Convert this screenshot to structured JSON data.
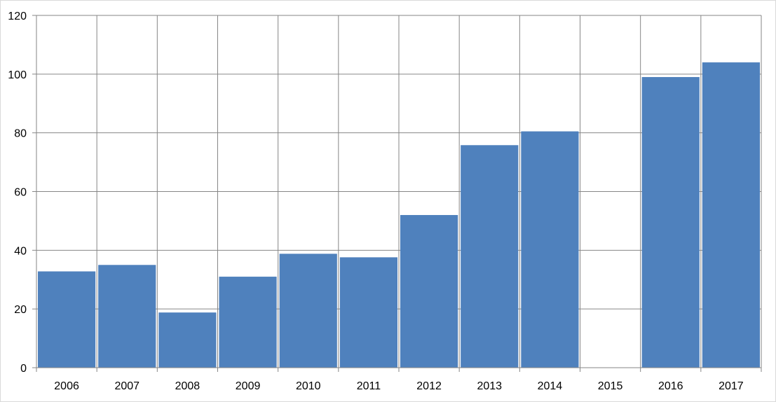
{
  "chart_data": {
    "type": "bar",
    "title": "",
    "xlabel": "",
    "ylabel": "",
    "categories": [
      "2006",
      "2007",
      "2008",
      "2009",
      "2010",
      "2011",
      "2012",
      "2013",
      "2014",
      "2015",
      "2016",
      "2017"
    ],
    "series": [
      {
        "values": [
          32.8,
          35,
          18.8,
          31,
          38.8,
          37.6,
          52,
          75.8,
          80.5,
          0,
          99,
          104
        ]
      }
    ],
    "ylim": [
      0,
      120
    ],
    "yticks": [
      "0",
      "20",
      "40",
      "60",
      "80",
      "100",
      "120"
    ],
    "grid": true,
    "legend": "none",
    "colors": {
      "bar": "#4F81BD",
      "grid": "#868686",
      "axis": "#868686"
    }
  }
}
